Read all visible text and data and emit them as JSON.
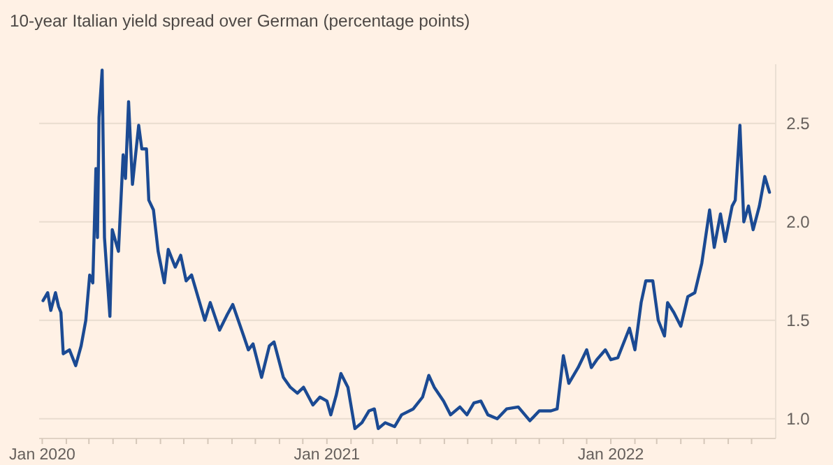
{
  "chart_data": {
    "type": "line",
    "title": "10-year Italian yield spread over German (percentage points)",
    "x": [
      "2020-01-02",
      "2020-01-08",
      "2020-01-12",
      "2020-01-18",
      "2020-01-22",
      "2020-01-25",
      "2020-01-28",
      "2020-02-05",
      "2020-02-13",
      "2020-02-20",
      "2020-02-26",
      "2020-03-02",
      "2020-03-06",
      "2020-03-10",
      "2020-03-12",
      "2020-03-14",
      "2020-03-18",
      "2020-03-21",
      "2020-03-28",
      "2020-03-31",
      "2020-04-08",
      "2020-04-14",
      "2020-04-17",
      "2020-04-21",
      "2020-04-26",
      "2020-05-04",
      "2020-05-08",
      "2020-05-14",
      "2020-05-17",
      "2020-05-23",
      "2020-05-29",
      "2020-06-06",
      "2020-06-11",
      "2020-06-20",
      "2020-06-27",
      "2020-07-04",
      "2020-07-11",
      "2020-07-28",
      "2020-08-04",
      "2020-08-16",
      "2020-08-26",
      "2020-09-02",
      "2020-09-16",
      "2020-09-22",
      "2020-09-28",
      "2020-10-09",
      "2020-10-19",
      "2020-10-25",
      "2020-11-06",
      "2020-11-15",
      "2020-11-24",
      "2020-12-02",
      "2020-12-14",
      "2020-12-23",
      "2021-01-01",
      "2021-01-06",
      "2021-01-13",
      "2021-01-19",
      "2021-01-28",
      "2021-02-06",
      "2021-02-15",
      "2021-02-24",
      "2021-03-03",
      "2021-03-08",
      "2021-03-17",
      "2021-03-29",
      "2021-04-07",
      "2021-04-22",
      "2021-05-04",
      "2021-05-12",
      "2021-05-19",
      "2021-05-31",
      "2021-06-09",
      "2021-06-21",
      "2021-06-30",
      "2021-07-09",
      "2021-07-18",
      "2021-07-27",
      "2021-08-08",
      "2021-08-20",
      "2021-09-04",
      "2021-09-19",
      "2021-10-01",
      "2021-10-16",
      "2021-10-24",
      "2021-11-01",
      "2021-11-08",
      "2021-11-20",
      "2021-12-01",
      "2021-12-07",
      "2021-12-14",
      "2021-12-25",
      "2022-01-01",
      "2022-01-10",
      "2022-01-25",
      "2022-02-01",
      "2022-02-09",
      "2022-02-15",
      "2022-02-24",
      "2022-03-03",
      "2022-03-11",
      "2022-03-15",
      "2022-03-23",
      "2022-04-01",
      "2022-04-10",
      "2022-04-19",
      "2022-04-28",
      "2022-05-08",
      "2022-05-14",
      "2022-05-22",
      "2022-05-28",
      "2022-06-06",
      "2022-06-10",
      "2022-06-16",
      "2022-06-21",
      "2022-06-27",
      "2022-07-03",
      "2022-07-11",
      "2022-07-18",
      "2022-07-24"
    ],
    "series": [
      {
        "color": "#1b4a93",
        "values": [
          1.6,
          1.64,
          1.55,
          1.64,
          1.57,
          1.54,
          1.33,
          1.35,
          1.27,
          1.37,
          1.5,
          1.73,
          1.69,
          2.27,
          1.92,
          2.53,
          2.77,
          1.92,
          1.52,
          1.96,
          1.85,
          2.34,
          2.22,
          2.61,
          2.19,
          2.49,
          2.37,
          2.37,
          2.11,
          2.06,
          1.85,
          1.69,
          1.86,
          1.77,
          1.83,
          1.7,
          1.73,
          1.5,
          1.59,
          1.45,
          1.53,
          1.58,
          1.42,
          1.35,
          1.38,
          1.21,
          1.37,
          1.39,
          1.21,
          1.16,
          1.13,
          1.16,
          1.07,
          1.11,
          1.09,
          1.02,
          1.12,
          1.23,
          1.16,
          0.95,
          0.98,
          1.04,
          1.05,
          0.95,
          0.98,
          0.96,
          1.02,
          1.05,
          1.11,
          1.22,
          1.16,
          1.09,
          1.02,
          1.06,
          1.02,
          1.08,
          1.09,
          1.02,
          1.0,
          1.05,
          1.06,
          0.99,
          1.04,
          1.04,
          1.05,
          1.32,
          1.18,
          1.26,
          1.35,
          1.26,
          1.3,
          1.35,
          1.3,
          1.31,
          1.46,
          1.35,
          1.59,
          1.7,
          1.7,
          1.5,
          1.42,
          1.59,
          1.54,
          1.47,
          1.62,
          1.64,
          1.79,
          2.06,
          1.87,
          2.04,
          1.9,
          2.08,
          2.11,
          2.49,
          2.0,
          2.08,
          1.96,
          2.08,
          2.23,
          2.15
        ]
      }
    ],
    "xlim": [
      "2019-12-28",
      "2022-08-01"
    ],
    "xticks": [
      {
        "value": "2020-01",
        "label": "Jan 2020"
      },
      {
        "value": "2020-02",
        "label": null
      },
      {
        "value": "2020-03",
        "label": null
      },
      {
        "value": "2020-04",
        "label": null
      },
      {
        "value": "2020-05",
        "label": null
      },
      {
        "value": "2020-06",
        "label": null
      },
      {
        "value": "2020-07",
        "label": null
      },
      {
        "value": "2020-08",
        "label": null
      },
      {
        "value": "2020-09",
        "label": null
      },
      {
        "value": "2020-10",
        "label": null
      },
      {
        "value": "2020-11",
        "label": null
      },
      {
        "value": "2020-12",
        "label": null
      },
      {
        "value": "2021-01",
        "label": "Jan 2021"
      },
      {
        "value": "2021-02",
        "label": null
      },
      {
        "value": "2021-03",
        "label": null
      },
      {
        "value": "2021-04",
        "label": null
      },
      {
        "value": "2021-05",
        "label": null
      },
      {
        "value": "2021-06",
        "label": null
      },
      {
        "value": "2021-07",
        "label": null
      },
      {
        "value": "2021-08",
        "label": null
      },
      {
        "value": "2021-09",
        "label": null
      },
      {
        "value": "2021-10",
        "label": null
      },
      {
        "value": "2021-11",
        "label": null
      },
      {
        "value": "2021-12",
        "label": null
      },
      {
        "value": "2022-01",
        "label": "Jan 2022"
      },
      {
        "value": "2022-02",
        "label": null
      },
      {
        "value": "2022-03",
        "label": null
      },
      {
        "value": "2022-04",
        "label": null
      },
      {
        "value": "2022-05",
        "label": null
      },
      {
        "value": "2022-06",
        "label": null
      },
      {
        "value": "2022-07",
        "label": null
      }
    ],
    "ylim": [
      0.9,
      2.8
    ],
    "yticks": [
      {
        "value": 1,
        "label": "1.0"
      },
      {
        "value": 1.5,
        "label": "1.5"
      },
      {
        "value": 2,
        "label": "2.0"
      },
      {
        "value": 2.5,
        "label": "2.5"
      }
    ],
    "grid": "y",
    "line_style": "solid"
  }
}
